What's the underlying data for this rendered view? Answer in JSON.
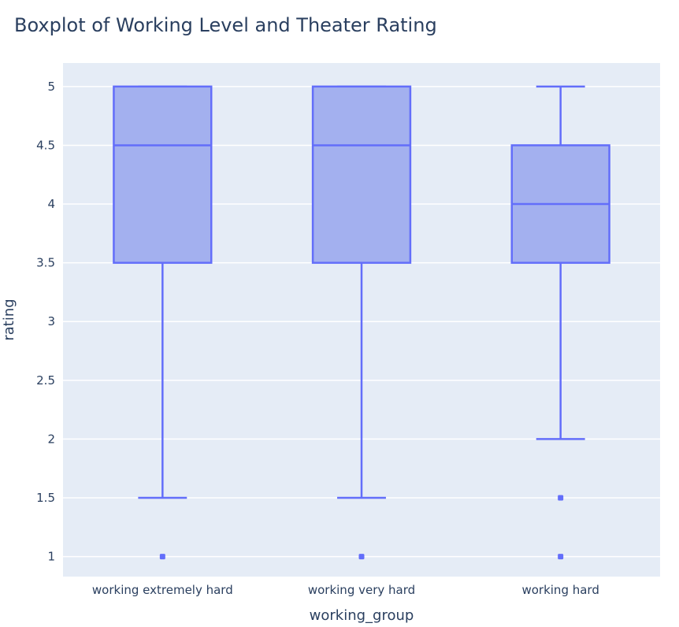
{
  "chart_data": {
    "type": "box",
    "title": "Boxplot of Working Level and Theater Rating",
    "xlabel": "working_group",
    "ylabel": "rating",
    "ylim": [
      0.83,
      5.2
    ],
    "yticks": [
      1,
      1.5,
      2,
      2.5,
      3,
      3.5,
      4,
      4.5,
      5
    ],
    "ytick_labels": [
      "1",
      "1.5",
      "2",
      "2.5",
      "3",
      "3.5",
      "4",
      "4.5",
      "5"
    ],
    "grid": true,
    "legend": "none",
    "categories": [
      "working extremely hard",
      "working very hard",
      "working hard"
    ],
    "boxes": [
      {
        "category": "working extremely hard",
        "whisker_low": 1.5,
        "q1": 3.5,
        "median": 4.5,
        "q3": 5,
        "whisker_high": 5,
        "outliers": [
          1
        ]
      },
      {
        "category": "working very hard",
        "whisker_low": 1.5,
        "q1": 3.5,
        "median": 4.5,
        "q3": 5,
        "whisker_high": 5,
        "outliers": [
          1
        ]
      },
      {
        "category": "working hard",
        "whisker_low": 2,
        "q1": 3.5,
        "median": 4,
        "q3": 4.5,
        "whisker_high": 5,
        "outliers": [
          1.5,
          1
        ]
      }
    ],
    "colors": {
      "plot_background": "#e5ecf6",
      "box_fill": "#a3b0ef",
      "box_line": "#636efa",
      "grid": "#ffffff",
      "text": "#2a3f5f"
    }
  }
}
